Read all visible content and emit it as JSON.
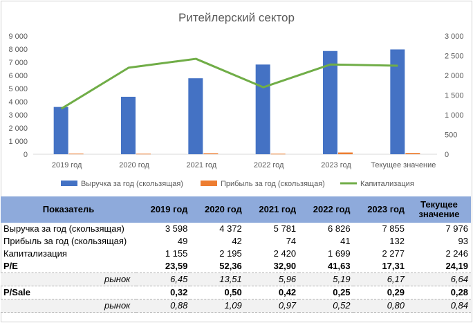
{
  "chart_data": {
    "type": "bar",
    "title": "Ритейлерский сектор",
    "categories": [
      "2019 год",
      "2020 год",
      "2021 год",
      "2022 год",
      "2023 год",
      "Текущее значение"
    ],
    "ylim": [
      0,
      9000
    ],
    "y2lim": [
      0,
      3000
    ],
    "y_ticks": [
      "0",
      "1 000",
      "2 000",
      "3 000",
      "4 000",
      "5 000",
      "6 000",
      "7 000",
      "8 000",
      "9 000"
    ],
    "y2_ticks": [
      "0",
      "500",
      "1 000",
      "1 500",
      "2 000",
      "2 500",
      "3 000"
    ],
    "legend_position": "bottom",
    "grid": false,
    "series": [
      {
        "name": "Выручка за год (скользящая)",
        "type": "bar",
        "axis": "left",
        "color": "#4472c4",
        "values": [
          3598,
          4372,
          5781,
          6826,
          7855,
          7976
        ]
      },
      {
        "name": "Прибыль за год (скользящая)",
        "type": "bar",
        "axis": "left",
        "color": "#ed7d31",
        "values": [
          49,
          42,
          74,
          41,
          132,
          93
        ]
      },
      {
        "name": "Капитализация",
        "type": "line",
        "axis": "right",
        "color": "#70ad47",
        "values": [
          1155,
          2195,
          2420,
          1699,
          2277,
          2246
        ]
      }
    ]
  },
  "table": {
    "headers": [
      "Показатель",
      "2019 год",
      "2020 год",
      "2021 год",
      "2022 год",
      "2023 год",
      "Текущее значение"
    ],
    "rows": [
      {
        "label": "Выручка за год (скользящая)",
        "values": [
          "3 598",
          "4 372",
          "5 781",
          "6 826",
          "7 855",
          "7 976"
        ],
        "style": "normal"
      },
      {
        "label": "Прибыль за год (скользящая)",
        "values": [
          "49",
          "42",
          "74",
          "41",
          "132",
          "93"
        ],
        "style": "normal"
      },
      {
        "label": "Капитализация",
        "values": [
          "1 155",
          "2 195",
          "2 420",
          "1 699",
          "2 277",
          "2 246"
        ],
        "style": "normal"
      },
      {
        "label": "P/E",
        "values": [
          "23,59",
          "52,36",
          "32,90",
          "41,63",
          "17,31",
          "24,19"
        ],
        "style": "bold"
      },
      {
        "label": "рынок",
        "values": [
          "6,45",
          "13,51",
          "5,96",
          "5,19",
          "6,17",
          "6,64"
        ],
        "style": "market"
      },
      {
        "label": "P/Sale",
        "values": [
          "0,32",
          "0,50",
          "0,42",
          "0,25",
          "0,29",
          "0,28"
        ],
        "style": "bold"
      },
      {
        "label": "рынок",
        "values": [
          "0,88",
          "1,09",
          "0,97",
          "0,52",
          "0,80",
          "0,84"
        ],
        "style": "market"
      }
    ]
  }
}
